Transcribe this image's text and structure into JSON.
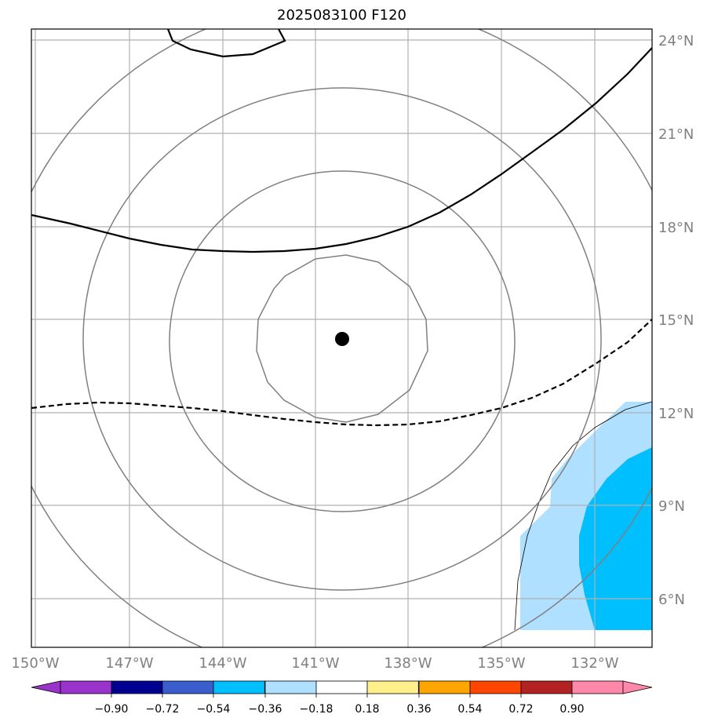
{
  "title": "2025083100 F120",
  "map": {
    "lon_labels": [
      "150°W",
      "147°W",
      "144°W",
      "141°W",
      "138°W",
      "135°W",
      "132°W"
    ],
    "lat_labels": [
      "24°N",
      "21°N",
      "18°N",
      "15°N",
      "12°N",
      "9°N",
      "6°N"
    ],
    "storm_center_icon": "filled-black-dot",
    "colors": {
      "light_blue": "#b0e0ff",
      "blue": "#00bfff",
      "contour": "#808080",
      "grid": "#b0b0b0"
    }
  },
  "colorbar": {
    "ticks": [
      "−0.90",
      "−0.72",
      "−0.54",
      "−0.36",
      "−0.18",
      "0.18",
      "0.36",
      "0.54",
      "0.72",
      "0.90"
    ],
    "colors": [
      "#9933cc",
      "#000090",
      "#3a5fcd",
      "#00bfff",
      "#b0e0ff",
      "#ffffff",
      "#fff08c",
      "#ffa500",
      "#ff4500",
      "#b22222",
      "#ff88aa"
    ]
  }
}
